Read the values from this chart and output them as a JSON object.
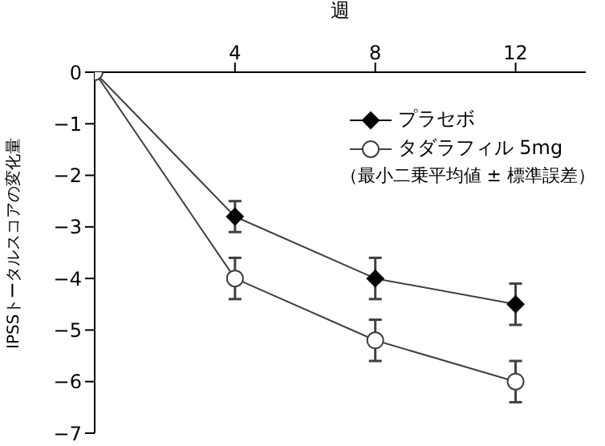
{
  "chart_data": {
    "type": "line",
    "xlabel": "週",
    "ylabel": "IPSSトータルスコアの変化量",
    "x": [
      0,
      4,
      8,
      12
    ],
    "series": [
      {
        "name": "プラセボ",
        "color": "#000000",
        "marker": "diamond",
        "values": [
          0,
          -2.8,
          -4,
          -4.5
        ],
        "errors": [
          null,
          0.3,
          0.4,
          0.4
        ]
      },
      {
        "name": "タダラフィル 5mg",
        "color": "#404040",
        "marker": "circle",
        "values": [
          0,
          -4,
          -5.2,
          -6
        ],
        "errors": [
          null,
          0.4,
          0.4,
          0.4
        ]
      }
    ],
    "xlim": [
      0,
      14
    ],
    "xticks": [
      4,
      8,
      12
    ],
    "ylim": [
      -7,
      0
    ],
    "yticks": [
      0,
      -1,
      -2,
      -3,
      -4,
      -5,
      -6,
      -7
    ],
    "grid": false,
    "legend": "top right",
    "annotations": [
      "（最小二乗平均値 ± 標準誤差）"
    ]
  }
}
